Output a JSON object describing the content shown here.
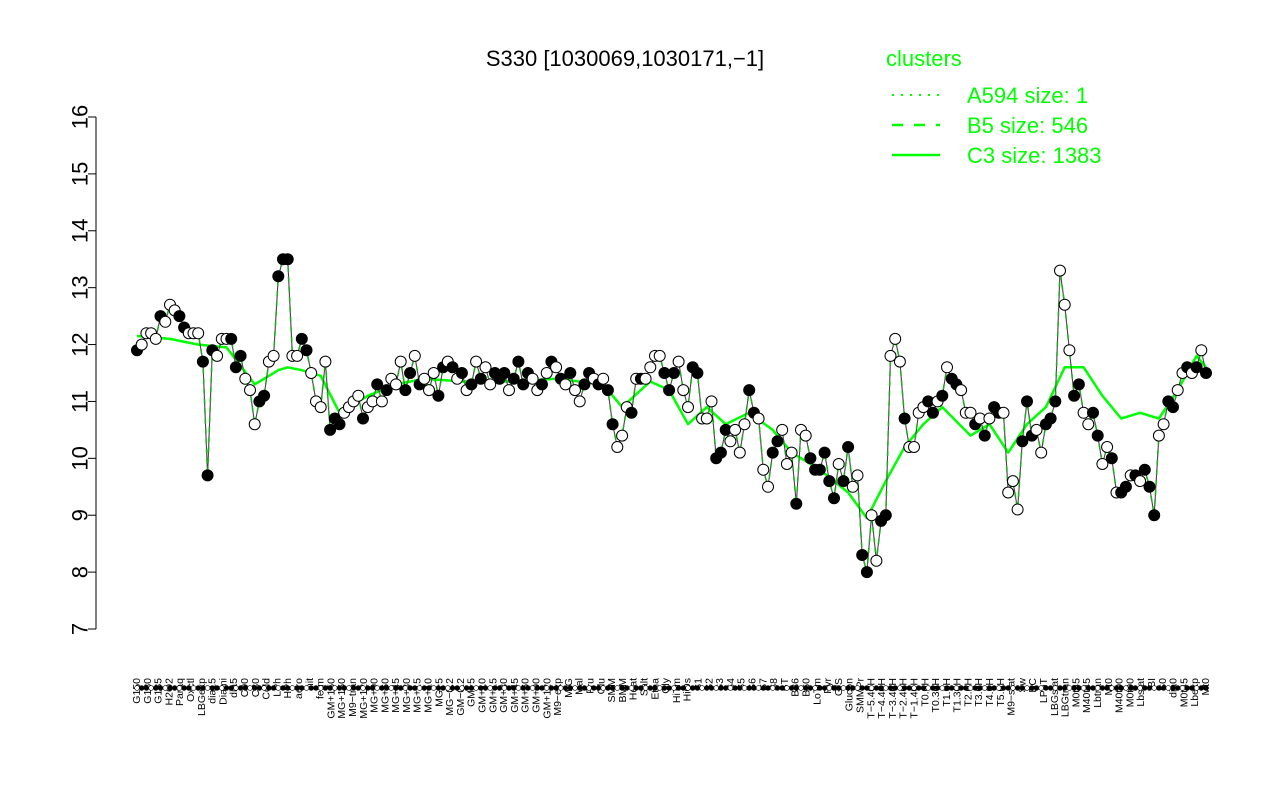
{
  "chart_data": {
    "type": "line",
    "title": "S330 [1030069,1030171,−1]",
    "xlabel": "",
    "ylabel": "",
    "ylim": [
      7,
      16
    ],
    "yticks": [
      7,
      8,
      9,
      10,
      11,
      12,
      13,
      14,
      15,
      16
    ],
    "grid": false,
    "legend": {
      "title": "clusters",
      "placement": "top-right",
      "color": "#00ff00",
      "entries": [
        {
          "label": "A594 size: 1",
          "dash": "dotted"
        },
        {
          "label": "B5 size: 546",
          "dash": "dashed"
        },
        {
          "label": "C3 size: 1383",
          "dash": "solid"
        }
      ]
    },
    "x_labels": [
      "G150",
      "G180",
      "G135",
      "H2O2",
      "Paraq",
      "Oxctl",
      "LBGexp",
      "dia15",
      "Diami",
      "dia5",
      "C90",
      "C30",
      "Cold",
      "LPh",
      "HPh",
      "aero",
      "nit",
      "ferm",
      "GM+150",
      "MG+150",
      "M9−tran",
      "MG+120",
      "MG+90",
      "MG+60",
      "MG+45",
      "MG+30",
      "MG+15",
      "MG+10",
      "MG+5",
      "MG−0.2",
      "GM−0.2",
      "GM+5",
      "GM+10",
      "GM+15",
      "GM+30",
      "GM+45",
      "GM+60",
      "GM+90",
      "GM+120",
      "M9−exp",
      "M/G",
      "Mal",
      "Fru",
      "Glu",
      "SMM",
      "BMM",
      "Heat",
      "Salt",
      "Etha",
      "Gly",
      "HiTm",
      "HiOs",
      "S1",
      "S2",
      "S3",
      "S4",
      "S5",
      "S6",
      "S7",
      "S8",
      "BT",
      "B36",
      "B60",
      "LoTm",
      "Pyr",
      "G/S",
      "Glucon",
      "SMMPr",
      "T−5.40H",
      "T−4.40H",
      "T−3.40H",
      "T−2.40H",
      "T−1.40H",
      "T0.0H",
      "T0.30H",
      "T1.0H",
      "T1.30H",
      "T2.0H",
      "T3.0H",
      "T4.0H",
      "T5.0H",
      "M9−stat",
      "Sw",
      "BC",
      "LPhT",
      "LBGstat",
      "LBGtran",
      "M0t45",
      "M40t45",
      "Lbtran",
      "Mt0",
      "M40t90",
      "M0t90",
      "Lbstat",
      "BI",
      "S0",
      "dia0",
      "M0t45",
      "Lbexp",
      "Mt0"
    ],
    "points": [
      [
        1,
        11.9,
        "f"
      ],
      [
        2,
        12.0,
        "o"
      ],
      [
        3,
        12.2,
        "o"
      ],
      [
        4,
        12.2,
        "o"
      ],
      [
        5,
        12.1,
        "o"
      ],
      [
        6,
        12.5,
        "f"
      ],
      [
        7,
        12.4,
        "o"
      ],
      [
        8,
        12.7,
        "o"
      ],
      [
        9,
        12.6,
        "o"
      ],
      [
        10,
        12.5,
        "f"
      ],
      [
        11,
        12.3,
        "f"
      ],
      [
        12,
        12.2,
        "o"
      ],
      [
        13,
        12.2,
        "o"
      ],
      [
        14,
        12.2,
        "o"
      ],
      [
        15,
        11.7,
        "f"
      ],
      [
        16,
        9.7,
        "f"
      ],
      [
        17,
        11.9,
        "f"
      ],
      [
        18,
        11.8,
        "o"
      ],
      [
        19,
        12.1,
        "o"
      ],
      [
        20,
        12.1,
        "o"
      ],
      [
        21,
        12.1,
        "f"
      ],
      [
        22,
        11.6,
        "f"
      ],
      [
        23,
        11.8,
        "f"
      ],
      [
        24,
        11.4,
        "o"
      ],
      [
        25,
        11.2,
        "o"
      ],
      [
        26,
        10.6,
        "o"
      ],
      [
        27,
        11.0,
        "f"
      ],
      [
        28,
        11.1,
        "f"
      ],
      [
        29,
        11.7,
        "o"
      ],
      [
        30,
        11.8,
        "o"
      ],
      [
        31,
        13.2,
        "f"
      ],
      [
        32,
        13.5,
        "f"
      ],
      [
        33,
        13.5,
        "f"
      ],
      [
        34,
        11.8,
        "o"
      ],
      [
        35,
        11.8,
        "o"
      ],
      [
        36,
        12.1,
        "f"
      ],
      [
        37,
        11.9,
        "f"
      ],
      [
        38,
        11.5,
        "o"
      ],
      [
        39,
        11.0,
        "o"
      ],
      [
        40,
        10.9,
        "o"
      ],
      [
        41,
        11.7,
        "o"
      ],
      [
        42,
        10.5,
        "f"
      ],
      [
        43,
        10.7,
        "f"
      ],
      [
        44,
        10.6,
        "f"
      ],
      [
        45,
        10.8,
        "o"
      ],
      [
        46,
        10.9,
        "o"
      ],
      [
        47,
        11.0,
        "o"
      ],
      [
        48,
        11.1,
        "o"
      ],
      [
        49,
        10.7,
        "f"
      ],
      [
        50,
        10.9,
        "o"
      ],
      [
        51,
        11.0,
        "o"
      ],
      [
        52,
        11.3,
        "f"
      ],
      [
        53,
        11.0,
        "o"
      ],
      [
        54,
        11.2,
        "f"
      ],
      [
        55,
        11.4,
        "o"
      ],
      [
        56,
        11.3,
        "o"
      ],
      [
        57,
        11.7,
        "o"
      ],
      [
        58,
        11.2,
        "f"
      ],
      [
        59,
        11.5,
        "f"
      ],
      [
        60,
        11.8,
        "o"
      ],
      [
        61,
        11.3,
        "f"
      ],
      [
        62,
        11.4,
        "o"
      ],
      [
        63,
        11.2,
        "o"
      ],
      [
        64,
        11.5,
        "o"
      ],
      [
        65,
        11.1,
        "f"
      ],
      [
        66,
        11.6,
        "f"
      ],
      [
        67,
        11.7,
        "o"
      ],
      [
        68,
        11.6,
        "f"
      ],
      [
        69,
        11.4,
        "o"
      ],
      [
        70,
        11.5,
        "f"
      ],
      [
        71,
        11.2,
        "o"
      ],
      [
        72,
        11.3,
        "f"
      ],
      [
        73,
        11.7,
        "o"
      ],
      [
        74,
        11.4,
        "f"
      ],
      [
        75,
        11.6,
        "o"
      ],
      [
        76,
        11.3,
        "o"
      ],
      [
        77,
        11.5,
        "f"
      ],
      [
        78,
        11.4,
        "f"
      ],
      [
        79,
        11.5,
        "f"
      ],
      [
        80,
        11.2,
        "o"
      ],
      [
        81,
        11.4,
        "f"
      ],
      [
        82,
        11.7,
        "f"
      ],
      [
        83,
        11.3,
        "f"
      ],
      [
        84,
        11.5,
        "f"
      ],
      [
        85,
        11.4,
        "o"
      ],
      [
        86,
        11.2,
        "o"
      ],
      [
        87,
        11.3,
        "f"
      ],
      [
        88,
        11.5,
        "o"
      ],
      [
        89,
        11.7,
        "f"
      ],
      [
        90,
        11.6,
        "o"
      ],
      [
        91,
        11.4,
        "f"
      ],
      [
        92,
        11.3,
        "o"
      ],
      [
        93,
        11.5,
        "f"
      ],
      [
        94,
        11.2,
        "o"
      ],
      [
        95,
        11.0,
        "o"
      ],
      [
        96,
        11.3,
        "f"
      ],
      [
        97,
        11.5,
        "f"
      ],
      [
        98,
        11.4,
        "o"
      ],
      [
        99,
        11.3,
        "f"
      ],
      [
        100,
        11.4,
        "o"
      ],
      [
        101,
        11.2,
        "f"
      ],
      [
        102,
        10.6,
        "f"
      ],
      [
        103,
        10.2,
        "o"
      ],
      [
        104,
        10.4,
        "o"
      ],
      [
        105,
        10.9,
        "o"
      ],
      [
        106,
        10.8,
        "f"
      ],
      [
        107,
        11.4,
        "o"
      ],
      [
        108,
        11.4,
        "f"
      ],
      [
        109,
        11.4,
        "o"
      ],
      [
        110,
        11.6,
        "o"
      ],
      [
        111,
        11.8,
        "o"
      ],
      [
        112,
        11.8,
        "o"
      ],
      [
        113,
        11.5,
        "f"
      ],
      [
        114,
        11.2,
        "f"
      ],
      [
        115,
        11.5,
        "f"
      ],
      [
        116,
        11.7,
        "o"
      ],
      [
        117,
        11.2,
        "o"
      ],
      [
        118,
        10.9,
        "o"
      ],
      [
        119,
        11.6,
        "f"
      ],
      [
        120,
        11.5,
        "f"
      ],
      [
        121,
        10.7,
        "o"
      ],
      [
        122,
        10.7,
        "o"
      ],
      [
        123,
        11.0,
        "o"
      ],
      [
        124,
        10.0,
        "f"
      ],
      [
        125,
        10.1,
        "f"
      ],
      [
        126,
        10.5,
        "f"
      ],
      [
        127,
        10.3,
        "o"
      ],
      [
        128,
        10.5,
        "o"
      ],
      [
        129,
        10.1,
        "o"
      ],
      [
        130,
        10.6,
        "o"
      ],
      [
        131,
        11.2,
        "f"
      ],
      [
        132,
        10.8,
        "f"
      ],
      [
        133,
        10.7,
        "o"
      ],
      [
        134,
        9.8,
        "o"
      ],
      [
        135,
        9.5,
        "o"
      ],
      [
        136,
        10.1,
        "f"
      ],
      [
        137,
        10.3,
        "f"
      ],
      [
        138,
        10.5,
        "o"
      ],
      [
        139,
        9.9,
        "o"
      ],
      [
        140,
        10.1,
        "o"
      ],
      [
        141,
        9.2,
        "f"
      ],
      [
        142,
        10.5,
        "o"
      ],
      [
        143,
        10.4,
        "o"
      ],
      [
        144,
        10.0,
        "f"
      ],
      [
        145,
        9.8,
        "f"
      ],
      [
        146,
        9.8,
        "f"
      ],
      [
        147,
        10.1,
        "f"
      ],
      [
        148,
        9.6,
        "f"
      ],
      [
        149,
        9.3,
        "f"
      ],
      [
        150,
        9.9,
        "o"
      ],
      [
        151,
        9.6,
        "f"
      ],
      [
        152,
        10.2,
        "f"
      ],
      [
        153,
        9.5,
        "o"
      ],
      [
        154,
        9.7,
        "o"
      ],
      [
        155,
        8.3,
        "f"
      ],
      [
        156,
        8.0,
        "f"
      ],
      [
        157,
        9.0,
        "o"
      ],
      [
        158,
        8.2,
        "o"
      ],
      [
        159,
        8.9,
        "f"
      ],
      [
        160,
        9.0,
        "f"
      ],
      [
        161,
        11.8,
        "o"
      ],
      [
        162,
        12.1,
        "o"
      ],
      [
        163,
        11.7,
        "o"
      ],
      [
        164,
        10.7,
        "f"
      ],
      [
        165,
        10.2,
        "o"
      ],
      [
        166,
        10.2,
        "o"
      ],
      [
        167,
        10.8,
        "o"
      ],
      [
        168,
        10.9,
        "o"
      ],
      [
        169,
        11.0,
        "f"
      ],
      [
        170,
        10.8,
        "f"
      ],
      [
        171,
        11.0,
        "o"
      ],
      [
        172,
        11.1,
        "f"
      ],
      [
        173,
        11.6,
        "o"
      ],
      [
        174,
        11.4,
        "f"
      ],
      [
        175,
        11.3,
        "f"
      ],
      [
        176,
        11.2,
        "o"
      ],
      [
        177,
        10.8,
        "o"
      ],
      [
        178,
        10.8,
        "o"
      ],
      [
        179,
        10.6,
        "f"
      ],
      [
        180,
        10.7,
        "o"
      ],
      [
        181,
        10.4,
        "f"
      ],
      [
        182,
        10.7,
        "o"
      ],
      [
        183,
        10.9,
        "f"
      ],
      [
        184,
        10.8,
        "f"
      ],
      [
        185,
        10.8,
        "o"
      ],
      [
        186,
        9.4,
        "o"
      ],
      [
        187,
        9.6,
        "o"
      ],
      [
        188,
        9.1,
        "o"
      ],
      [
        189,
        10.3,
        "f"
      ],
      [
        190,
        11.0,
        "f"
      ],
      [
        191,
        10.4,
        "f"
      ],
      [
        192,
        10.5,
        "o"
      ],
      [
        193,
        10.1,
        "o"
      ],
      [
        194,
        10.6,
        "f"
      ],
      [
        195,
        10.7,
        "f"
      ],
      [
        196,
        11.0,
        "f"
      ],
      [
        197,
        13.3,
        "o"
      ],
      [
        198,
        12.7,
        "o"
      ],
      [
        199,
        11.9,
        "o"
      ],
      [
        200,
        11.1,
        "f"
      ],
      [
        201,
        11.3,
        "f"
      ],
      [
        202,
        10.8,
        "o"
      ],
      [
        203,
        10.6,
        "o"
      ],
      [
        204,
        10.8,
        "f"
      ],
      [
        205,
        10.4,
        "f"
      ],
      [
        206,
        9.9,
        "o"
      ],
      [
        207,
        10.2,
        "o"
      ],
      [
        208,
        10.0,
        "f"
      ],
      [
        209,
        9.4,
        "o"
      ],
      [
        210,
        9.4,
        "f"
      ],
      [
        211,
        9.5,
        "f"
      ],
      [
        212,
        9.7,
        "o"
      ],
      [
        213,
        9.7,
        "f"
      ],
      [
        214,
        9.6,
        "o"
      ],
      [
        215,
        9.8,
        "f"
      ],
      [
        216,
        9.5,
        "f"
      ],
      [
        217,
        9.0,
        "f"
      ],
      [
        218,
        10.4,
        "o"
      ],
      [
        219,
        10.6,
        "o"
      ],
      [
        220,
        11.0,
        "f"
      ],
      [
        221,
        10.9,
        "f"
      ],
      [
        222,
        11.2,
        "o"
      ],
      [
        223,
        11.5,
        "o"
      ],
      [
        224,
        11.6,
        "f"
      ],
      [
        225,
        11.5,
        "o"
      ],
      [
        226,
        11.6,
        "f"
      ],
      [
        227,
        11.9,
        "o"
      ],
      [
        228,
        11.5,
        "f"
      ]
    ],
    "c3_line": [
      [
        1,
        12.15
      ],
      [
        8,
        12.1
      ],
      [
        14,
        12.0
      ],
      [
        20,
        11.95
      ],
      [
        26,
        11.3
      ],
      [
        31,
        11.55
      ],
      [
        33,
        11.6
      ],
      [
        36,
        11.55
      ],
      [
        40,
        11.45
      ],
      [
        44,
        10.8
      ],
      [
        50,
        11.1
      ],
      [
        56,
        11.3
      ],
      [
        62,
        11.4
      ],
      [
        70,
        11.35
      ],
      [
        80,
        11.35
      ],
      [
        90,
        11.4
      ],
      [
        100,
        11.3
      ],
      [
        104,
        10.9
      ],
      [
        110,
        11.35
      ],
      [
        114,
        11.2
      ],
      [
        118,
        10.6
      ],
      [
        122,
        10.9
      ],
      [
        126,
        10.6
      ],
      [
        131,
        10.8
      ],
      [
        136,
        10.5
      ],
      [
        140,
        10.1
      ],
      [
        146,
        9.8
      ],
      [
        152,
        9.4
      ],
      [
        156,
        8.95
      ],
      [
        160,
        9.6
      ],
      [
        164,
        10.2
      ],
      [
        168,
        10.6
      ],
      [
        172,
        10.9
      ],
      [
        178,
        10.4
      ],
      [
        182,
        10.6
      ],
      [
        186,
        10.1
      ],
      [
        190,
        10.6
      ],
      [
        194,
        10.9
      ],
      [
        198,
        11.6
      ],
      [
        202,
        11.6
      ],
      [
        206,
        11.1
      ],
      [
        210,
        10.7
      ],
      [
        214,
        10.8
      ],
      [
        218,
        10.7
      ],
      [
        222,
        11.2
      ],
      [
        226,
        11.8
      ],
      [
        228,
        11.6
      ]
    ]
  }
}
